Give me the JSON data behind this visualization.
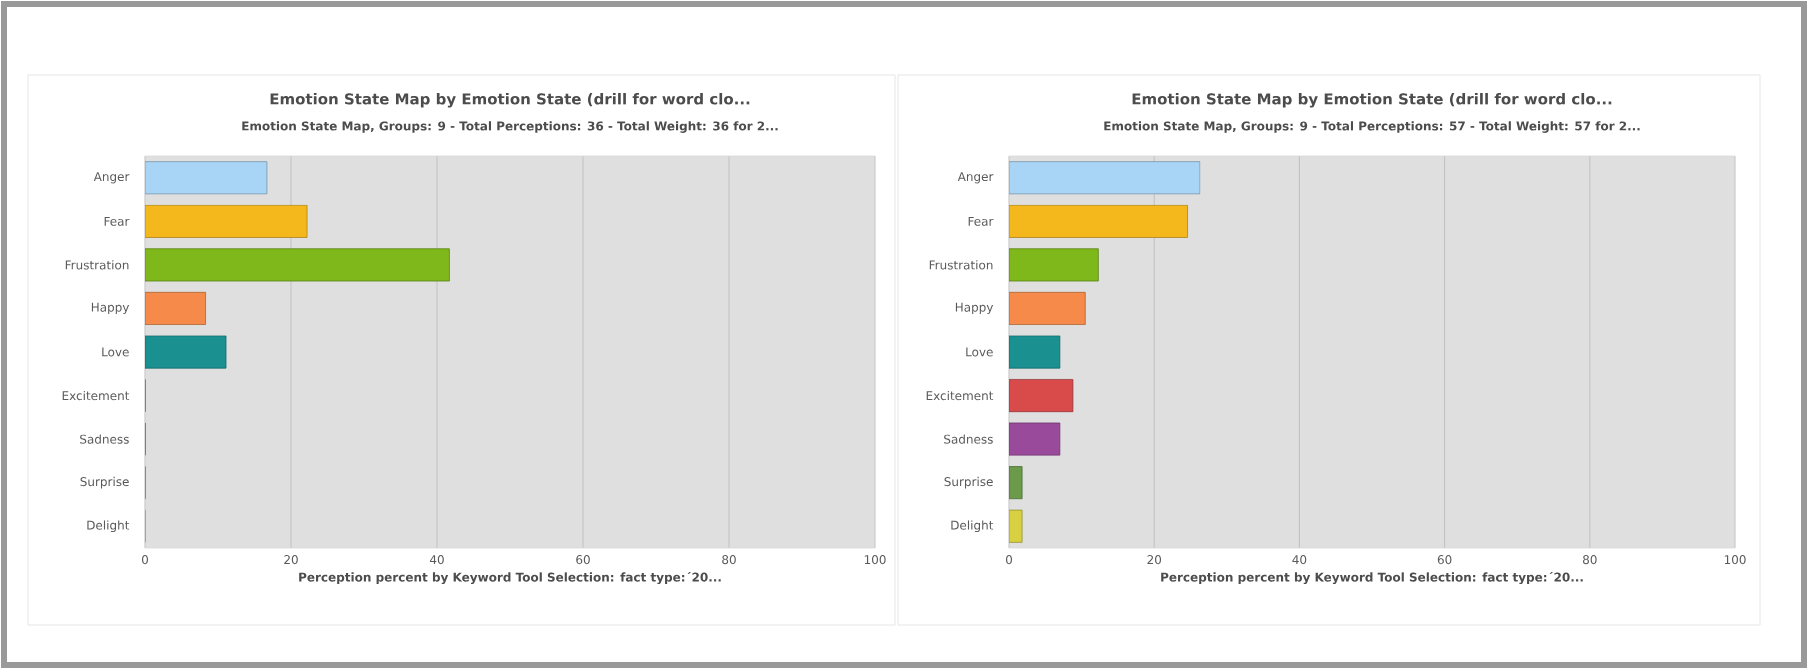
{
  "chart_data": [
    {
      "type": "bar",
      "orientation": "horizontal",
      "title": "Emotion State Map by Emotion State (drill for word clo...",
      "subtitle": "Emotion State Map, Groups: 9 - Total Perceptions: 36 - Total Weight: 36 for 2...",
      "xlabel": "Perception percent by Keyword Tool Selection: fact type:´20...",
      "categories": [
        "Anger",
        "Fear",
        "Frustration",
        "Happy",
        "Love",
        "Excitement",
        "Sadness",
        "Surprise",
        "Delight"
      ],
      "values": [
        16.7,
        22.2,
        41.7,
        8.3,
        11.1,
        0,
        0,
        0,
        0
      ],
      "colors": [
        "#a8d4f5",
        "#f5b81c",
        "#7fb81a",
        "#f58a4a",
        "#1a9090",
        "#d94a4a",
        "#9a4a9a",
        "#6a9a4a",
        "#d8d040"
      ],
      "xlim": [
        0,
        100
      ],
      "xticks": [
        0,
        20,
        40,
        60,
        80,
        100
      ],
      "grid": "x"
    },
    {
      "type": "bar",
      "orientation": "horizontal",
      "title": "Emotion State Map by Emotion State (drill for word clo...",
      "subtitle": "Emotion State Map, Groups: 9 - Total Perceptions: 57 - Total Weight: 57 for 2...",
      "xlabel": "Perception percent by Keyword Tool Selection: fact type:´20...",
      "categories": [
        "Anger",
        "Fear",
        "Frustration",
        "Happy",
        "Love",
        "Excitement",
        "Sadness",
        "Surprise",
        "Delight"
      ],
      "values": [
        26.3,
        24.6,
        12.3,
        10.5,
        7.0,
        8.8,
        7.0,
        1.8,
        1.8
      ],
      "colors": [
        "#a8d4f5",
        "#f5b81c",
        "#7fb81a",
        "#f58a4a",
        "#1a9090",
        "#d94a4a",
        "#9a4a9a",
        "#6a9a4a",
        "#d8d040"
      ],
      "xlim": [
        0,
        100
      ],
      "xticks": [
        0,
        20,
        40,
        60,
        80,
        100
      ],
      "grid": "x"
    }
  ]
}
